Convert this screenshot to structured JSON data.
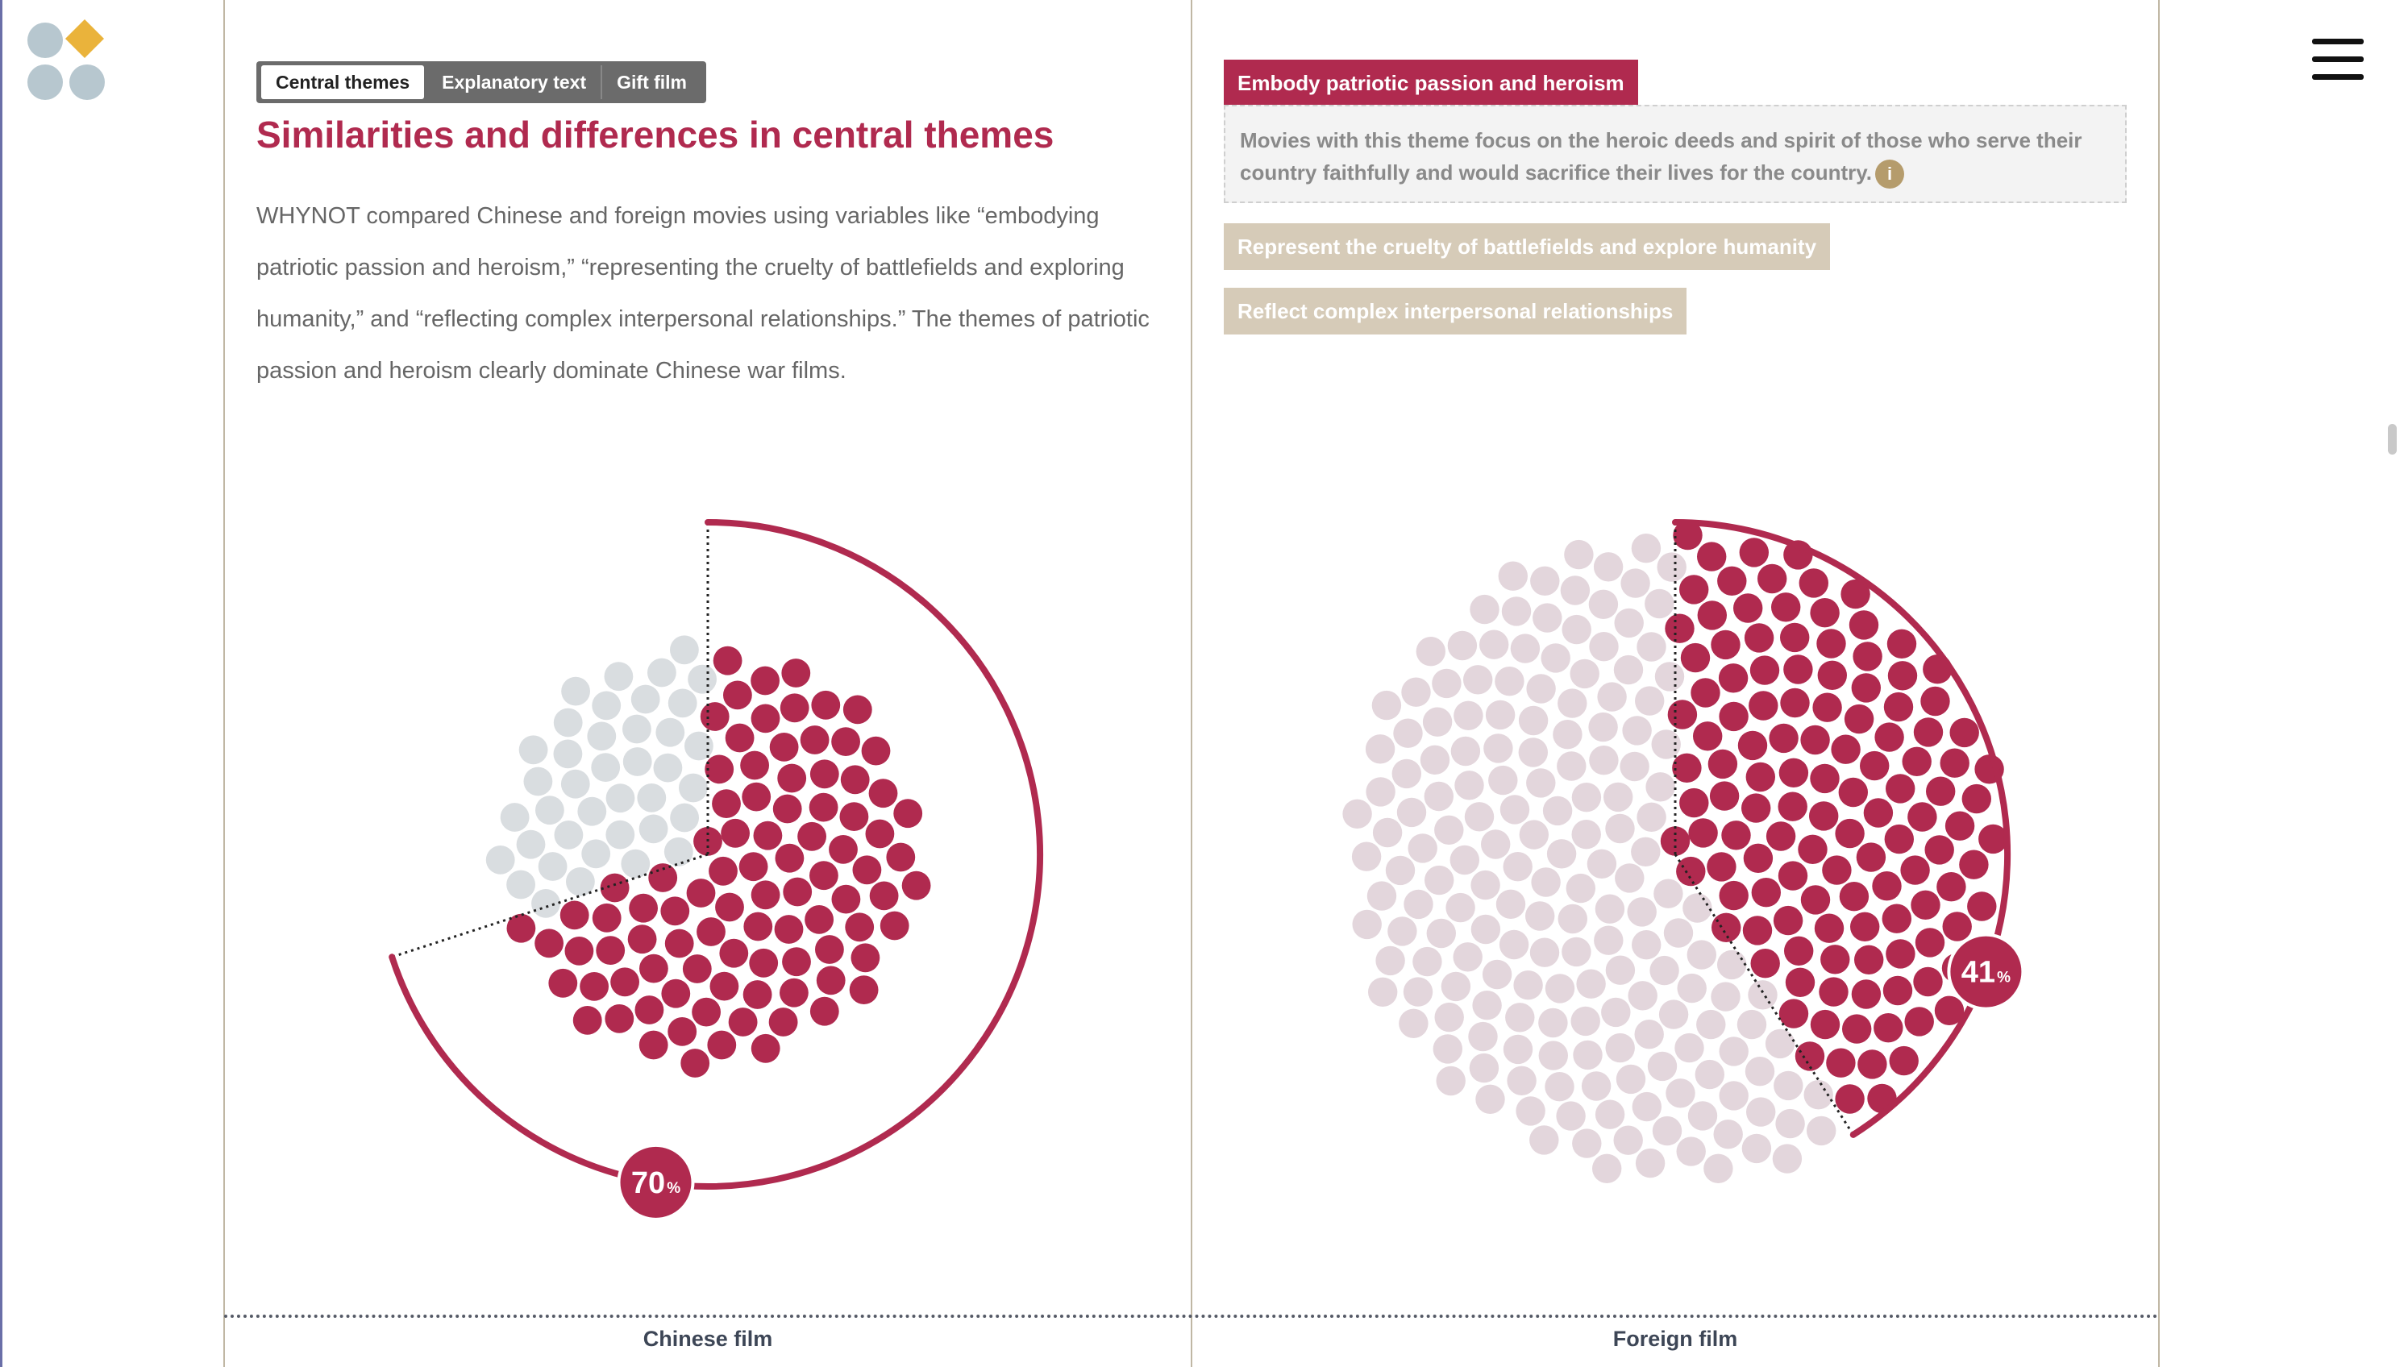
{
  "tabs": {
    "items": [
      "Central themes",
      "Explanatory text",
      "Gift film"
    ],
    "active": 0
  },
  "main": {
    "heading": "Similarities and differences in central themes",
    "intro": "WHYNOT compared Chinese and foreign movies using variables like “embodying patriotic passion and heroism,” “representing the cruelty of battlefields and exploring humanity,” and “reflecting complex interpersonal relationships.” The themes of patriotic passion and heroism clearly dominate Chinese war films."
  },
  "themes": {
    "items": [
      "Embody patriotic passion and heroism",
      "Represent the cruelty of battlefields and explore humanity",
      "Reflect complex interpersonal relationships"
    ],
    "active": 0,
    "description": "Movies with this theme focus on the heroic deeds and spirit of those who serve their country faithfully and would sacrifice their lives for the country.",
    "info_icon": "info-icon"
  },
  "colors": {
    "accent": "#b02a4f",
    "inactive_dot_chinese": "#d9dde0",
    "inactive_dot_foreign": "#e3d6dc",
    "inactive_button": "#d6cbb8",
    "logo_dots": "#b7c7cf",
    "logo_diamond": "#eab33b"
  },
  "chart_data": [
    {
      "type": "dot-radial",
      "label": "Chinese film",
      "percent": 70,
      "percent_label": "70",
      "unit": "%"
    },
    {
      "type": "dot-radial",
      "label": "Foreign film",
      "percent": 41,
      "percent_label": "41",
      "unit": "%"
    }
  ]
}
